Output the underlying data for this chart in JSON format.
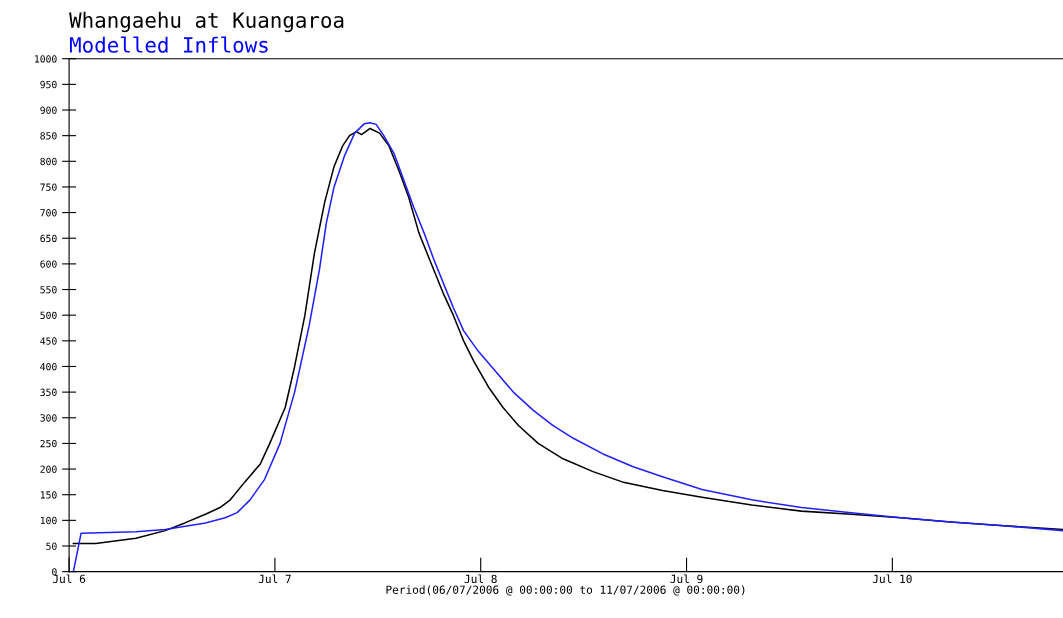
{
  "chart_data": {
    "type": "line",
    "title": "Whangaehu at Kuangaroa",
    "subtitle": "Modelled Inflows",
    "xlabel": "Period(06/07/2006 @ 00:00:00 to 11/07/2006 @ 00:00:00)",
    "xlim": [
      "2006-07-06T00:00",
      "2006-07-10T19:54"
    ],
    "ylim": [
      0,
      1000
    ],
    "xticks": [
      {
        "value": "2006-07-06",
        "label": "Jul 6"
      },
      {
        "value": "2006-07-07",
        "label": "Jul 7"
      },
      {
        "value": "2006-07-08",
        "label": "Jul 8"
      },
      {
        "value": "2006-07-09",
        "label": "Jul 9"
      },
      {
        "value": "2006-07-10",
        "label": "Jul 10"
      }
    ],
    "yticks": [
      0,
      50,
      100,
      150,
      200,
      250,
      300,
      350,
      400,
      450,
      500,
      550,
      600,
      650,
      700,
      750,
      800,
      850,
      900,
      950,
      1000
    ],
    "grid": false,
    "legend": false,
    "marker": "none",
    "line_style": "solid",
    "series": [
      {
        "color": "#000000",
        "x": [
          "2006-07-06T00:30",
          "2006-07-06T03:06",
          "2006-07-06T07:48",
          "2006-07-06T11:12",
          "2006-07-06T13:30",
          "2006-07-06T15:54",
          "2006-07-06T17:36",
          "2006-07-06T18:48",
          "2006-07-06T20:30",
          "2006-07-06T22:18",
          "2006-07-06T23:24",
          "2006-07-07T01:12",
          "2006-07-07T02:18",
          "2006-07-07T03:30",
          "2006-07-07T04:36",
          "2006-07-07T05:48",
          "2006-07-07T06:54",
          "2006-07-07T07:54",
          "2006-07-07T08:42",
          "2006-07-07T09:30",
          "2006-07-07T10:06",
          "2006-07-07T11:06",
          "2006-07-07T12:12",
          "2006-07-07T13:18",
          "2006-07-07T14:30",
          "2006-07-07T15:36",
          "2006-07-07T16:48",
          "2006-07-07T18:00",
          "2006-07-07T19:42",
          "2006-07-07T20:48",
          "2006-07-07T22:00",
          "2006-07-07T23:12",
          "2006-07-08T00:54",
          "2006-07-08T02:36",
          "2006-07-08T04:24",
          "2006-07-08T06:42",
          "2006-07-08T09:36",
          "2006-07-08T13:06",
          "2006-07-08T16:30",
          "2006-07-08T21:12",
          "2006-07-09T01:48",
          "2006-07-09T07:36",
          "2006-07-09T13:24",
          "2006-07-09T19:12",
          "2006-07-10T01:00",
          "2006-07-10T06:48",
          "2006-07-10T12:36",
          "2006-07-10T19:54"
        ],
        "values": [
          55,
          55,
          65,
          80,
          95,
          112,
          125,
          140,
          175,
          210,
          250,
          320,
          400,
          500,
          620,
          720,
          790,
          830,
          850,
          858,
          852,
          864,
          855,
          830,
          780,
          730,
          660,
          610,
          540,
          500,
          450,
          410,
          360,
          320,
          285,
          250,
          220,
          195,
          175,
          158,
          145,
          130,
          118,
          112,
          105,
          97,
          90,
          82
        ]
      },
      {
        "color": "#2020ff",
        "x": [
          "2006-07-06T00:00",
          "2006-07-06T00:30",
          "2006-07-06T01:24",
          "2006-07-06T07:48",
          "2006-07-06T11:12",
          "2006-07-06T15:54",
          "2006-07-06T18:12",
          "2006-07-06T19:36",
          "2006-07-06T21:06",
          "2006-07-06T22:48",
          "2006-07-07T00:36",
          "2006-07-07T02:18",
          "2006-07-07T04:00",
          "2006-07-07T05:12",
          "2006-07-07T06:00",
          "2006-07-07T06:54",
          "2006-07-07T08:06",
          "2006-07-07T09:18",
          "2006-07-07T10:24",
          "2006-07-07T11:06",
          "2006-07-07T11:48",
          "2006-07-07T12:42",
          "2006-07-07T13:54",
          "2006-07-07T15:06",
          "2006-07-07T16:12",
          "2006-07-07T17:24",
          "2006-07-07T18:30",
          "2006-07-07T19:42",
          "2006-07-07T20:48",
          "2006-07-07T22:00",
          "2006-07-07T23:42",
          "2006-07-08T01:30",
          "2006-07-08T03:48",
          "2006-07-08T06:06",
          "2006-07-08T08:24",
          "2006-07-08T10:48",
          "2006-07-08T14:12",
          "2006-07-08T17:42",
          "2006-07-08T21:12",
          "2006-07-09T01:48",
          "2006-07-09T07:36",
          "2006-07-09T13:24",
          "2006-07-09T19:12",
          "2006-07-10T01:00",
          "2006-07-10T06:48",
          "2006-07-10T12:36",
          "2006-07-10T19:54"
        ],
        "values": [
          0,
          0,
          75,
          78,
          82,
          95,
          105,
          115,
          140,
          180,
          250,
          350,
          480,
          590,
          680,
          750,
          810,
          855,
          873,
          875,
          872,
          850,
          815,
          760,
          710,
          660,
          610,
          560,
          515,
          470,
          430,
          395,
          350,
          315,
          285,
          260,
          230,
          205,
          185,
          160,
          140,
          125,
          115,
          105,
          97,
          90,
          80
        ]
      }
    ]
  }
}
